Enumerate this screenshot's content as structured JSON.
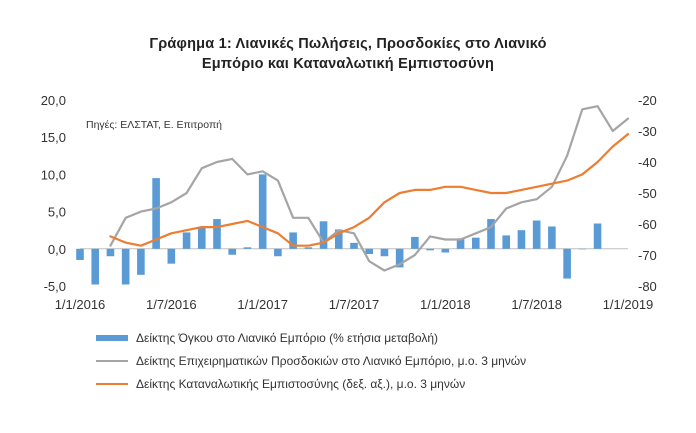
{
  "title_line1": "Γράφημα 1: Λιανικές Πωλήσεις, Προσδοκίες στο Λιανικό",
  "title_line2": "Εμπόριο και Καταναλωτική Εμπιστοσύνη",
  "source_note": "Πηγές: ΕΛΣΤΑΤ,  Ε. Επιτροπή",
  "chart_data": {
    "type": "bar",
    "x_tick_labels": [
      "1/1/2016",
      "1/7/2016",
      "1/1/2017",
      "1/7/2017",
      "1/1/2018",
      "1/7/2018",
      "1/1/2019"
    ],
    "y_left_ticks": [
      "20,0",
      "15,0",
      "10,0",
      "5,0",
      "0,0",
      "-5,0"
    ],
    "y_right_ticks": [
      "-20",
      "-30",
      "-40",
      "-50",
      "-60",
      "-70",
      "-80"
    ],
    "ylim_left": [
      -5,
      20
    ],
    "ylim_right": [
      -80,
      -20
    ],
    "x_months": [
      "2016-01",
      "2016-02",
      "2016-03",
      "2016-04",
      "2016-05",
      "2016-06",
      "2016-07",
      "2016-08",
      "2016-09",
      "2016-10",
      "2016-11",
      "2016-12",
      "2017-01",
      "2017-02",
      "2017-03",
      "2017-04",
      "2017-05",
      "2017-06",
      "2017-07",
      "2017-08",
      "2017-09",
      "2017-10",
      "2017-11",
      "2017-12",
      "2018-01",
      "2018-02",
      "2018-03",
      "2018-04",
      "2018-05",
      "2018-06",
      "2018-07",
      "2018-08",
      "2018-09",
      "2018-10",
      "2018-11",
      "2018-12",
      "2019-01"
    ],
    "series": [
      {
        "name": "Δείκτης Όγκου στο Λιανικό Εμπόριο (% ετήσια μεταβολή)",
        "type": "bar",
        "axis": "left",
        "color": "#5b9bd5",
        "values": [
          -1.5,
          -4.8,
          -1.0,
          -4.8,
          -3.5,
          9.5,
          -2.0,
          2.2,
          2.8,
          4.0,
          -0.8,
          0.2,
          10.0,
          -1.0,
          2.2,
          0.2,
          3.7,
          2.6,
          0.8,
          -0.7,
          -1.0,
          -2.5,
          1.6,
          -0.2,
          -0.5,
          1.4,
          1.5,
          4.0,
          1.8,
          2.5,
          3.8,
          3.0,
          -4.0,
          0.0,
          3.4,
          null,
          null
        ]
      },
      {
        "name": "Δείκτης Επιχειρηματικών Προσδοκιών στο Λιανικό Εμπόριο, μ.ο. 3 μηνών",
        "type": "line",
        "axis": "right",
        "color": "#a5a5a5",
        "values": [
          null,
          null,
          -67,
          -58,
          -56,
          -55,
          -53,
          -50,
          -42,
          -40,
          -39,
          -44,
          -43,
          -46,
          -58,
          -58,
          -66,
          -62,
          -63,
          -72,
          -75,
          -73,
          -70,
          -64,
          -65,
          -65,
          -63,
          -61,
          -55,
          -53,
          -52,
          -48,
          -38,
          -23,
          -22,
          -30,
          -26
        ]
      },
      {
        "name": "Δείκτης Καταναλωτικής Εμπιστοσύνης (δεξ. αξ.), μ.ο. 3 μηνών",
        "type": "line",
        "axis": "right",
        "color": "#ed7d31",
        "values": [
          null,
          null,
          -64,
          -66,
          -67,
          -65,
          -63,
          -62,
          -61,
          -61,
          -60,
          -59,
          -61,
          -63,
          -67,
          -67,
          -66,
          -63,
          -61,
          -58,
          -53,
          -50,
          -49,
          -49,
          -48,
          -48,
          -49,
          -50,
          -50,
          -49,
          -48,
          -47,
          -46,
          -44,
          -40,
          -35,
          -31
        ]
      }
    ]
  }
}
